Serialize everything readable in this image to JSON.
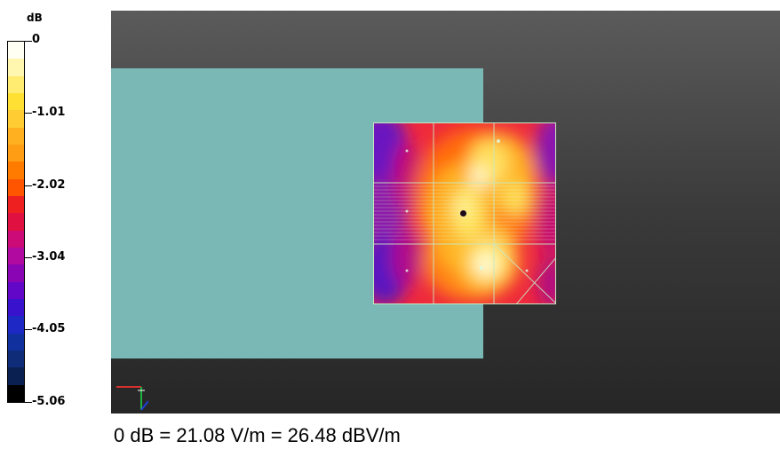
{
  "legend": {
    "unit": "dB",
    "ticks": [
      "0",
      "-1.01",
      "-2.02",
      "-3.04",
      "-4.05",
      "-5.06"
    ],
    "colors": [
      "#fffff4",
      "#fff6b0",
      "#ffec70",
      "#ffe033",
      "#ffcc33",
      "#ffb020",
      "#ff9d14",
      "#ff7b00",
      "#ff5500",
      "#ee2020",
      "#e01040",
      "#cc0a78",
      "#b00aa0",
      "#8a06b4",
      "#6206c8",
      "#3812cc",
      "#1e28c4",
      "#10309e",
      "#0e2c78",
      "#0a2050",
      "#000000"
    ]
  },
  "caption": "0 dB = 21.08 V/m = 26.48 dBV/m",
  "colors": {
    "phantom": "#79b8b5",
    "viewport_top": "#5b5b5b",
    "viewport_bottom": "#262626",
    "grid_lines": "#c9e8c0"
  },
  "icons": {
    "axis": "xyz-axis-triad-icon",
    "probe": "probe-marker-icon"
  }
}
